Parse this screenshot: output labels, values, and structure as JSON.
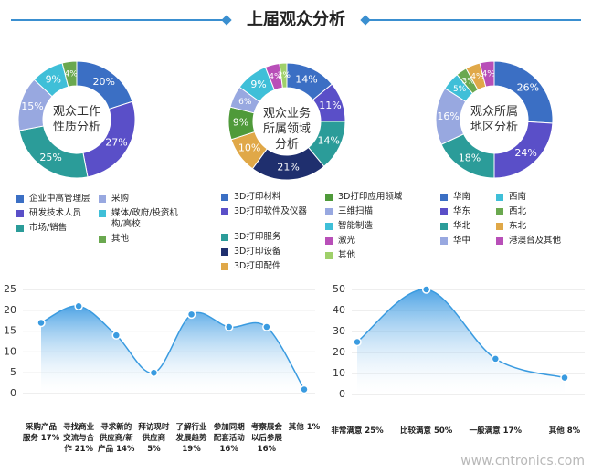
{
  "title": "上届观众分析",
  "watermark": "www.cntronics.com",
  "chart_data": [
    {
      "type": "pie",
      "title": "观众工作性质分析",
      "categories": [
        "企业中高管理层",
        "研发技术人员",
        "市场/销售",
        "采购",
        "媒体/政府/投资机构/高校",
        "其他"
      ],
      "values": [
        20,
        27,
        25,
        15,
        9,
        4
      ],
      "value_labels": [
        "20%",
        "27%",
        "25%",
        "15%",
        "9%",
        "4%"
      ],
      "colors": [
        "#3b6fc4",
        "#5a4fc8",
        "#2b9c99",
        "#98a8e0",
        "#3fbfd8",
        "#6aa84f"
      ]
    },
    {
      "type": "pie",
      "title": "观众业务所属领域分析",
      "categories": [
        "3D打印材料",
        "3D打印软件及仪器",
        "3D打印服务",
        "3D打印设备",
        "3D打印配件",
        "3D打印应用领域",
        "三维扫描",
        "智能制造",
        "激光",
        "其他"
      ],
      "values": [
        14,
        11,
        14,
        21,
        10,
        9,
        6,
        9,
        4,
        2
      ],
      "value_labels": [
        "14%",
        "11%",
        "14%",
        "21%",
        "10%",
        "9%",
        "6%",
        "9%",
        "4%",
        "2%"
      ],
      "colors": [
        "#3b6fc4",
        "#5a4fc8",
        "#2b9c99",
        "#1f2f6e",
        "#e0a848",
        "#4f9a3a",
        "#98a8e0",
        "#3fbfd8",
        "#b84fb8",
        "#9fd06a"
      ]
    },
    {
      "type": "pie",
      "title": "观众所属地区分析",
      "categories": [
        "华南",
        "华东",
        "华北",
        "华中",
        "西南",
        "西北",
        "东北",
        "港澳台及其他"
      ],
      "values": [
        26,
        24,
        18,
        16,
        5,
        3,
        4,
        4
      ],
      "value_labels": [
        "26%",
        "24%",
        "18%",
        "16%",
        "5%",
        "3%",
        "4%",
        "4%"
      ],
      "colors": [
        "#3b6fc4",
        "#5a4fc8",
        "#2b9c99",
        "#98a8e0",
        "#3fbfd8",
        "#6aa84f",
        "#e0a848",
        "#b84fb8"
      ]
    },
    {
      "type": "line",
      "categories": [
        "采购产品服务 17%",
        "寻找商业交流与合作 21%",
        "寻求新的供应商/新产品 14%",
        "拜访现时供应商 5%",
        "了解行业发展趋势 19%",
        "参加同期配套活动 16%",
        "考察展会以后参展 16%",
        "其他 1%"
      ],
      "values": [
        17,
        21,
        14,
        5,
        19,
        16,
        16,
        1
      ],
      "color": "#3a9be0",
      "ylim": [
        0,
        25
      ],
      "yticks": [
        0,
        5,
        10,
        15,
        20,
        25
      ],
      "grid": true
    },
    {
      "type": "line",
      "categories": [
        "非常满意 25%",
        "比较满意 50%",
        "一般满意 17%",
        "其他 8%"
      ],
      "values": [
        25,
        50,
        17,
        8
      ],
      "color": "#3a9be0",
      "ylim": [
        0,
        50
      ],
      "yticks": [
        0,
        10,
        20,
        30,
        40,
        50
      ],
      "grid": true
    }
  ]
}
